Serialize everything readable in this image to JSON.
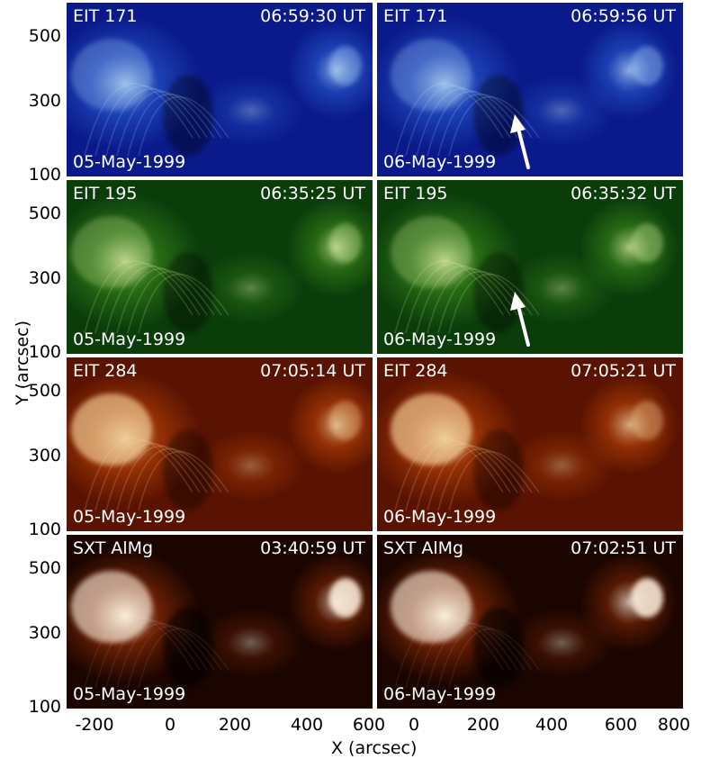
{
  "panels": [
    {
      "row": 0,
      "col": 0,
      "instrument": "EIT 171",
      "time": "06:59:30 UT",
      "date": "05-May-1999",
      "colormap": "blue",
      "arrow": false
    },
    {
      "row": 0,
      "col": 1,
      "instrument": "EIT 171",
      "time": "06:59:56 UT",
      "date": "06-May-1999",
      "colormap": "blue",
      "arrow": true
    },
    {
      "row": 1,
      "col": 0,
      "instrument": "EIT 195",
      "time": "06:35:25 UT",
      "date": "05-May-1999",
      "colormap": "green",
      "arrow": false
    },
    {
      "row": 1,
      "col": 1,
      "instrument": "EIT 195",
      "time": "06:35:32 UT",
      "date": "06-May-1999",
      "colormap": "green",
      "arrow": true
    },
    {
      "row": 2,
      "col": 0,
      "instrument": "EIT 284",
      "time": "07:05:14 UT",
      "date": "05-May-1999",
      "colormap": "orange",
      "arrow": false
    },
    {
      "row": 2,
      "col": 1,
      "instrument": "EIT 284",
      "time": "07:05:21 UT",
      "date": "06-May-1999",
      "colormap": "orange",
      "arrow": false
    },
    {
      "row": 3,
      "col": 0,
      "instrument": "SXT AlMg",
      "time": "03:40:59 UT",
      "date": "05-May-1999",
      "colormap": "red",
      "arrow": false
    },
    {
      "row": 3,
      "col": 1,
      "instrument": "SXT AlMg",
      "time": "07:02:51 UT",
      "date": "06-May-1999",
      "colormap": "red",
      "arrow": false
    }
  ],
  "colors": {
    "blue": {
      "bg": "#0a1a8a",
      "mid": "#2a5fd6",
      "hot": "#bfe6ff"
    },
    "green": {
      "bg": "#0b3d0b",
      "mid": "#3e8f1c",
      "hot": "#e4f7a8"
    },
    "orange": {
      "bg": "#5a1300",
      "mid": "#c4480a",
      "hot": "#ffe0a8"
    },
    "red": {
      "bg": "#1a0500",
      "mid": "#8c2a06",
      "hot": "#fff3e0"
    }
  },
  "axes": {
    "ylabel": "Y (arcsec)",
    "xlabel": "X (arcsec)",
    "yticks": [
      "500",
      "300",
      "100"
    ],
    "xticks_left": [
      "-200",
      "0",
      "200",
      "400",
      "600"
    ],
    "xticks_right": [
      "0",
      "200",
      "400",
      "600",
      "800"
    ]
  }
}
